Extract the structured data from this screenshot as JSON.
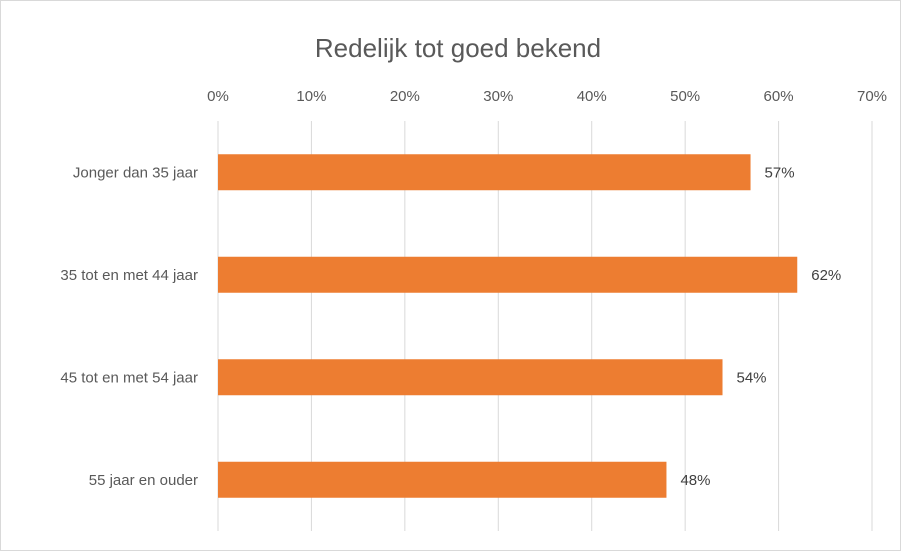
{
  "chart_data": {
    "type": "bar",
    "orientation": "horizontal",
    "title": "Redelijk tot goed bekend",
    "xlabel": "",
    "ylabel": "",
    "categories": [
      "Jonger dan 35 jaar",
      "35 tot en met 44 jaar",
      "45 tot en met 54 jaar",
      "55 jaar en ouder"
    ],
    "values": [
      57,
      62,
      54,
      48
    ],
    "data_labels": [
      "57%",
      "62%",
      "54%",
      "48%"
    ],
    "xlim": [
      0,
      70
    ],
    "x_ticks": [
      0,
      10,
      20,
      30,
      40,
      50,
      60,
      70
    ],
    "x_tick_labels": [
      "0%",
      "10%",
      "20%",
      "30%",
      "40%",
      "50%",
      "60%",
      "70%"
    ],
    "x_axis_position": "top",
    "grid": true,
    "legend": "none",
    "bar_color": "#ED7D31",
    "grid_color": "#d9d9d9"
  }
}
